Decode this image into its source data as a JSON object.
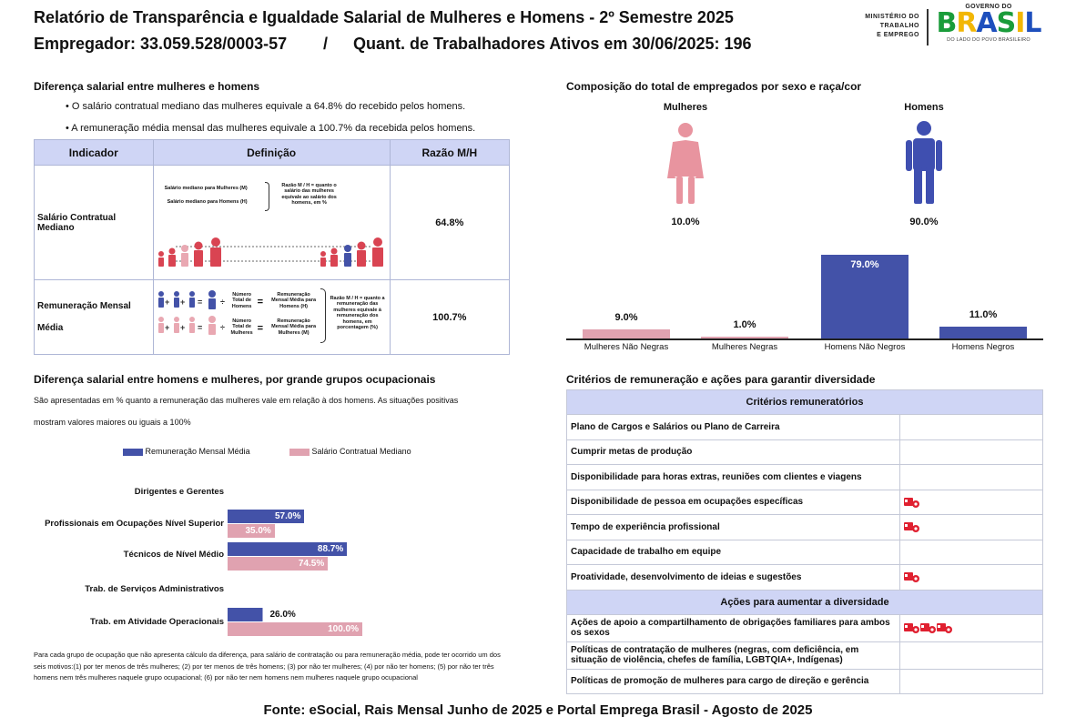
{
  "header": {
    "title": "Relatório de Transparência e Igualdade Salarial de Mulheres e Homens - 2º Semestre 2025",
    "employer_label": "Empregador: 33.059.528/0003-57",
    "separator": "/",
    "workers_label": "Quant. de Trabalhadores Ativos em 30/06/2025: 196"
  },
  "logo": {
    "ministry_line1": "MINISTÉRIO DO",
    "ministry_line2": "TRABALHO",
    "ministry_line3": "E EMPREGO",
    "gov_line": "GOVERNO DO",
    "brasil": "BRASIL",
    "tagline": "DO LADO DO POVO BRASILEIRO"
  },
  "salary_gap": {
    "title": "Diferença salarial entre mulheres e homens",
    "bullet1": "• O salário contratual mediano das mulheres equivale a 64.8% do recebido pelos homens.",
    "bullet2": "• A remuneração média mensal das mulheres equivale a 100.7% da recebida pelos homens.",
    "table": {
      "headers": [
        "Indicador",
        "Definição",
        "Razão M/H"
      ],
      "row1": {
        "indicator": "Salário Contratual Mediano",
        "ratio": "64.8%",
        "def_women": "Salário mediano para Mulheres (M)",
        "def_men": "Salário mediano para Homens (H)",
        "def_note": "Razão M / H = quanto o salário das mulheres equivale ao salário dos homens, em %"
      },
      "row2": {
        "indicator_line1": "Remuneração Mensal",
        "indicator_line2": "Média",
        "ratio": "100.7%",
        "men_count": "Número Total de Homens",
        "men_avg": "Remuneração Mensal Média para Homens (H)",
        "women_count": "Número Total de Mulheres",
        "women_avg": "Remuneração Mensal Média para Mulheres (M)",
        "def_note": "Razão M / H = quanto a remuneração das mulheres equivale à remuneração dos homens, em porcentagem (%)"
      }
    }
  },
  "composition": {
    "title": "Composição do total de empregados por sexo e raça/cor",
    "women_label": "Mulheres",
    "men_label": "Homens",
    "women_pct": "10.0%",
    "men_pct": "90.0%"
  },
  "chart_data": [
    {
      "type": "bar",
      "title": "Composição do total de empregados por sexo e raça/cor",
      "categories": [
        "Mulheres Não Negras",
        "Mulheres Negras",
        "Homens Não Negros",
        "Homens Negros"
      ],
      "values": [
        9.0,
        1.0,
        79.0,
        11.0
      ],
      "value_labels": [
        "9.0%",
        "1.0%",
        "79.0%",
        "11.0%"
      ],
      "colors": [
        "#e0a2b0",
        "#e0a2b0",
        "#4352a8",
        "#4352a8"
      ],
      "ylim": [
        0,
        79
      ]
    },
    {
      "type": "bar",
      "orientation": "horizontal",
      "title": "Diferença salarial entre homens e mulheres, por grande grupos ocupacionais",
      "categories": [
        "Dirigentes e Gerentes",
        "Profissionais em Ocupações Nível Superior",
        "Técnicos de Nível Médio",
        "Trab. de Serviços Administrativos",
        "Trab. em Atividade Operacionais"
      ],
      "series": [
        {
          "name": "Remuneração Mensal Média",
          "color": "#4352a8",
          "values": [
            null,
            57.0,
            88.7,
            null,
            26.0
          ],
          "labels": [
            "",
            "57.0%",
            "88.7%",
            "",
            "26.0%"
          ]
        },
        {
          "name": "Salário Contratual Mediano",
          "color": "#e0a2b0",
          "values": [
            null,
            35.0,
            74.5,
            null,
            100.0
          ],
          "labels": [
            "",
            "35.0%",
            "74.5%",
            "",
            "100.0%"
          ]
        }
      ],
      "xlim": [
        0,
        100
      ]
    }
  ],
  "occupational": {
    "title": "Diferença salarial entre homens e mulheres, por grande grupos ocupacionais",
    "desc1": "São apresentadas em % quanto a remuneração das mulheres vale em relação à dos homens. As situações positivas",
    "desc2": "mostram valores maiores ou iguais a 100%",
    "legend_blue": "Remuneração Mensal Média",
    "legend_pink": "Salário Contratual Mediano",
    "footnote": "Para cada grupo de ocupação que não apresenta cálculo da diferença, para salário de contratação ou para remuneração média, pode ter ocorrido um dos seis motivos:(1) por ter menos de três mulheres; (2) por ter menos de três homens; (3) por não ter mulheres; (4) por não ter homens; (5) por não ter três homens nem três mulheres naquele grupo ocupacional; (6) por não ter nem homens nem mulheres naquele grupo ocupacional"
  },
  "criteria": {
    "title": "Critérios de remuneração e ações para garantir diversidade",
    "header1": "Critérios remuneratórios",
    "rows1": [
      {
        "label": "Plano de Cargos e Salários ou Plano de Carreira",
        "icons": 0
      },
      {
        "label": "Cumprir metas de produção",
        "icons": 0
      },
      {
        "label": "Disponibilidade para horas extras, reuniões com clientes e viagens",
        "icons": 0
      },
      {
        "label": "Disponibilidade de pessoa em ocupações específicas",
        "icons": 1
      },
      {
        "label": "Tempo de experiência profissional",
        "icons": 1
      },
      {
        "label": "Capacidade de trabalho em equipe",
        "icons": 0
      },
      {
        "label": "Proatividade, desenvolvimento de ideias e sugestões",
        "icons": 1
      }
    ],
    "header2": "Ações para aumentar a diversidade",
    "rows2": [
      {
        "label": "Ações de apoio a compartilhamento de obrigações familiares para ambos os sexos",
        "icons": 3
      },
      {
        "label": "Políticas de contratação de mulheres (negras, com deficiência, em situação de violência, chefes de família, LGBTQIA+, Indígenas)",
        "icons": 0
      },
      {
        "label": "Políticas de promoção de mulheres para cargo de direção e gerência",
        "icons": 0
      }
    ]
  },
  "footer": {
    "source": "Fonte: eSocial, Rais Mensal Junho de 2025 e Portal Emprega Brasil - Agosto de 2025"
  }
}
